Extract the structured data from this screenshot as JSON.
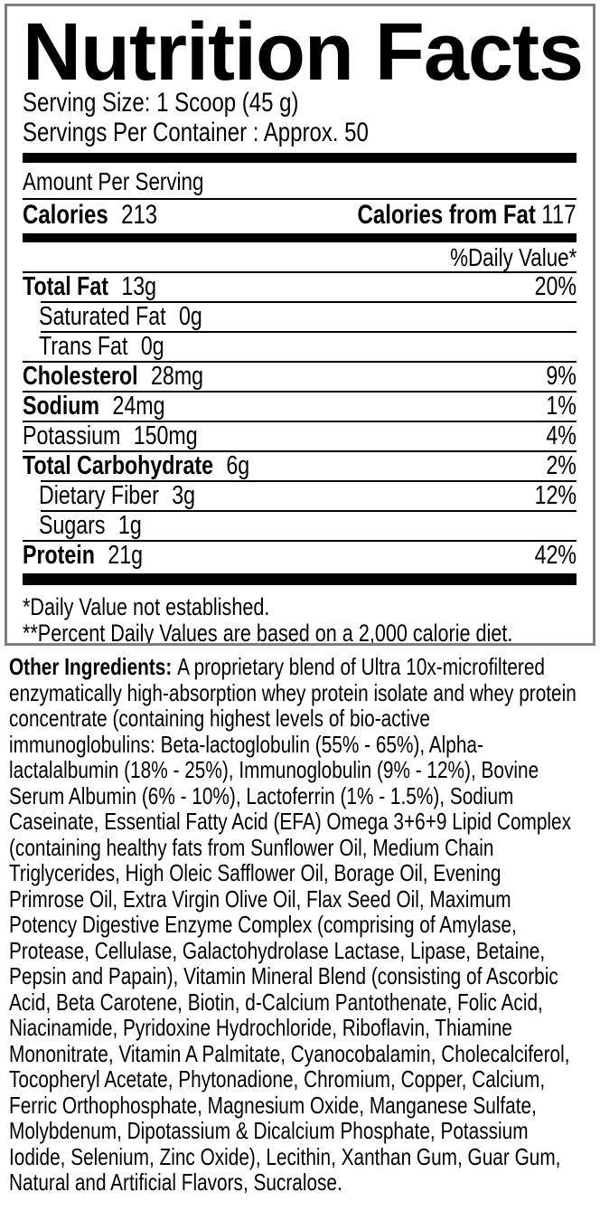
{
  "colors": {
    "text": "#000000",
    "rule": "#000000",
    "panel_border": "#7f7f7f",
    "background": "#ffffff"
  },
  "nutrition_facts": {
    "title": "Nutrition Facts",
    "serving_size": "Serving Size: 1 Scoop (45 g)",
    "servings_per_container": "Servings Per Container : Approx. 50",
    "amount_per_serving": "Amount Per Serving",
    "calories": {
      "label": "Calories",
      "value": "213"
    },
    "calories_from_fat": {
      "label": "Calories from Fat",
      "value": "117"
    },
    "daily_value_header": "%Daily Value*",
    "nutrients": [
      {
        "name": "Total Fat",
        "amount": "13g",
        "dv": "20%",
        "bold": true,
        "indent": false,
        "sep": "indent"
      },
      {
        "name": "Saturated Fat",
        "amount": "0g",
        "dv": "",
        "bold": false,
        "indent": true,
        "sep": "indent"
      },
      {
        "name": "Trans Fat",
        "amount": "0g",
        "dv": "",
        "bold": false,
        "indent": true,
        "sep": "full"
      },
      {
        "name": "Cholesterol",
        "amount": "28mg",
        "dv": "9%",
        "bold": true,
        "indent": false,
        "sep": "full"
      },
      {
        "name": "Sodium",
        "amount": "24mg",
        "dv": "1%",
        "bold": true,
        "indent": false,
        "sep": "full"
      },
      {
        "name": "Potassium",
        "amount": "150mg",
        "dv": "4%",
        "bold": false,
        "indent": false,
        "sep": "full"
      },
      {
        "name": "Total Carbohydrate",
        "amount": "6g",
        "dv": "2%",
        "bold": true,
        "indent": false,
        "sep": "indent"
      },
      {
        "name": "Dietary Fiber",
        "amount": "3g",
        "dv": "12%",
        "bold": false,
        "indent": true,
        "sep": "indent"
      },
      {
        "name": "Sugars",
        "amount": "1g",
        "dv": "",
        "bold": false,
        "indent": true,
        "sep": "full"
      },
      {
        "name": "Protein",
        "amount": "21g",
        "dv": "42%",
        "bold": true,
        "indent": false,
        "sep": "none"
      }
    ],
    "footnotes": [
      "*Daily Value not established.",
      "**Percent Daily Values are based on a 2,000 calorie diet."
    ]
  },
  "other_ingredients": {
    "label": "Other Ingredients:",
    "lines": [
      "A proprietary blend of Ultra 10x-microfiltered",
      "enzymatically high-absorption whey protein isolate and whey protein",
      "concentrate (containing highest levels of bio-active",
      "immunoglobulins: Beta-lactoglobulin (55% - 65%), Alpha-",
      "lactalalbumin (18% - 25%), Immunoglobulin (9% - 12%), Bovine",
      "Serum Albumin (6% - 10%), Lactoferrin (1% - 1.5%), Sodium",
      "Caseinate, Essential Fatty Acid (EFA) Omega 3+6+9 Lipid Complex",
      "(containing healthy fats from Sunflower Oil, Medium Chain",
      "Triglycerides, High Oleic Safflower Oil, Borage Oil, Evening",
      "Primrose Oil, Extra Virgin Olive Oil, Flax Seed Oil, Maximum",
      "Potency Digestive Enzyme Complex (comprising of Amylase,",
      "Protease, Cellulase, Galactohydrolase Lactase, Lipase, Betaine,",
      "Pepsin and Papain), Vitamin Mineral Blend (consisting of Ascorbic",
      "Acid, Beta Carotene, Biotin, d-Calcium Pantothenate, Folic Acid,",
      "Niacinamide, Pyridoxine Hydrochloride, Riboflavin, Thiamine",
      "Mononitrate, Vitamin A Palmitate, Cyanocobalamin, Cholecalciferol,",
      "Tocopheryl Acetate, Phytonadione, Chromium, Copper, Calcium,",
      "Ferric Orthophosphate, Magnesium Oxide, Manganese Sulfate,",
      "Molybdenum, Dipotassium & Dicalcium Phosphate, Potassium",
      "Iodide, Selenium, Zinc Oxide), Lecithin, Xanthan Gum, Guar Gum,",
      "Natural and Artificial Flavors, Sucralose."
    ]
  }
}
